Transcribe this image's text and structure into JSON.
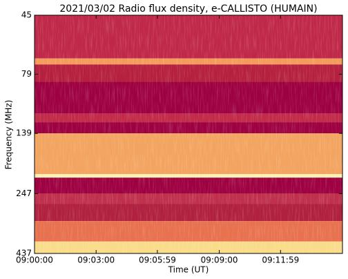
{
  "chart_data": {
    "type": "spectrogram",
    "title": "2021/03/02  Radio flux density, e-CALLISTO (HUMAIN)",
    "x_label": "Time (UT)",
    "y_label": "Frequency (MHz)",
    "xlim": [
      0,
      900
    ],
    "xticks": [
      {
        "value": 0,
        "label": "09:00:00"
      },
      {
        "value": 180,
        "label": "09:03:00"
      },
      {
        "value": 359,
        "label": "09:05:59"
      },
      {
        "value": 540,
        "label": "09:09:00"
      },
      {
        "value": 719,
        "label": "09:11:59"
      }
    ],
    "ylim": [
      45,
      437
    ],
    "yticks": [
      45,
      79,
      139,
      247,
      437
    ],
    "y_log": true,
    "y_inverted": true,
    "bands": [
      {
        "low": 45,
        "high": 68,
        "color": "#c0284a"
      },
      {
        "low": 68,
        "high": 72,
        "color": "#f59a5a"
      },
      {
        "low": 72,
        "high": 85,
        "color": "#b5203f"
      },
      {
        "low": 85,
        "high": 115,
        "color": "#9e0142"
      },
      {
        "low": 115,
        "high": 125,
        "color": "#c22a4a"
      },
      {
        "low": 125,
        "high": 139,
        "color": "#9e0142"
      },
      {
        "low": 139,
        "high": 205,
        "color": "#f3a461"
      },
      {
        "low": 205,
        "high": 212,
        "color": "#fff2b0"
      },
      {
        "low": 212,
        "high": 247,
        "color": "#9e0142"
      },
      {
        "low": 247,
        "high": 272,
        "color": "#c0304c"
      },
      {
        "low": 272,
        "high": 321,
        "color": "#b0203f"
      },
      {
        "low": 321,
        "high": 390,
        "color": "#e8714f"
      },
      {
        "low": 390,
        "high": 437,
        "color": "#f9dc8a"
      }
    ]
  }
}
